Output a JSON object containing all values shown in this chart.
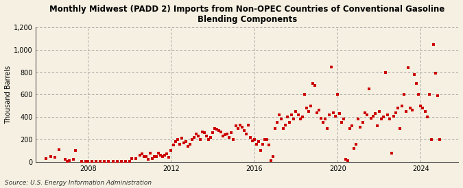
{
  "title": "Monthly Midwest (PADD 2) Imports from Non-OPEC Countries of Conventional Gasoline\nBlending Components",
  "ylabel": "Thousand Barrels",
  "source": "Source: U.S. Energy Information Administration",
  "background_color": "#f5f0e1",
  "plot_bg_color": "#f5f0e1",
  "dot_color": "#cc0000",
  "marker_size": 5,
  "ylim": [
    0,
    1200
  ],
  "yticks": [
    0,
    200,
    400,
    600,
    800,
    1000,
    1200
  ],
  "ytick_labels": [
    "0",
    "200",
    "400",
    "600",
    "800",
    "1,000",
    "1,200"
  ],
  "xticks": [
    2008,
    2012,
    2016,
    2020,
    2024
  ],
  "xlim": [
    2005.5,
    2025.8
  ],
  "data": [
    [
      2006.0,
      30
    ],
    [
      2006.2,
      50
    ],
    [
      2006.4,
      40
    ],
    [
      2006.6,
      110
    ],
    [
      2006.9,
      20
    ],
    [
      2007.0,
      5
    ],
    [
      2007.1,
      10
    ],
    [
      2007.3,
      20
    ],
    [
      2007.4,
      100
    ],
    [
      2007.7,
      5
    ],
    [
      2007.9,
      5
    ],
    [
      2008.0,
      5
    ],
    [
      2008.2,
      3
    ],
    [
      2008.4,
      5
    ],
    [
      2008.6,
      3
    ],
    [
      2008.8,
      5
    ],
    [
      2009.0,
      5
    ],
    [
      2009.2,
      3
    ],
    [
      2009.4,
      3
    ],
    [
      2009.6,
      3
    ],
    [
      2009.8,
      5
    ],
    [
      2010.0,
      5
    ],
    [
      2010.1,
      30
    ],
    [
      2010.3,
      30
    ],
    [
      2010.5,
      60
    ],
    [
      2010.6,
      70
    ],
    [
      2010.7,
      50
    ],
    [
      2010.8,
      50
    ],
    [
      2010.9,
      20
    ],
    [
      2011.0,
      80
    ],
    [
      2011.1,
      30
    ],
    [
      2011.2,
      50
    ],
    [
      2011.3,
      50
    ],
    [
      2011.4,
      80
    ],
    [
      2011.5,
      60
    ],
    [
      2011.6,
      50
    ],
    [
      2011.7,
      60
    ],
    [
      2011.8,
      70
    ],
    [
      2011.9,
      40
    ],
    [
      2012.0,
      100
    ],
    [
      2012.1,
      150
    ],
    [
      2012.2,
      180
    ],
    [
      2012.3,
      200
    ],
    [
      2012.4,
      160
    ],
    [
      2012.5,
      210
    ],
    [
      2012.6,
      170
    ],
    [
      2012.7,
      180
    ],
    [
      2012.8,
      140
    ],
    [
      2012.9,
      160
    ],
    [
      2013.0,
      200
    ],
    [
      2013.1,
      220
    ],
    [
      2013.2,
      250
    ],
    [
      2013.3,
      230
    ],
    [
      2013.4,
      200
    ],
    [
      2013.5,
      270
    ],
    [
      2013.6,
      260
    ],
    [
      2013.7,
      230
    ],
    [
      2013.8,
      200
    ],
    [
      2013.9,
      220
    ],
    [
      2014.0,
      260
    ],
    [
      2014.1,
      300
    ],
    [
      2014.2,
      290
    ],
    [
      2014.3,
      280
    ],
    [
      2014.4,
      270
    ],
    [
      2014.5,
      230
    ],
    [
      2014.6,
      240
    ],
    [
      2014.7,
      250
    ],
    [
      2014.8,
      220
    ],
    [
      2014.9,
      260
    ],
    [
      2015.0,
      200
    ],
    [
      2015.1,
      320
    ],
    [
      2015.2,
      300
    ],
    [
      2015.3,
      330
    ],
    [
      2015.4,
      310
    ],
    [
      2015.5,
      280
    ],
    [
      2015.6,
      250
    ],
    [
      2015.7,
      330
    ],
    [
      2015.8,
      220
    ],
    [
      2015.9,
      190
    ],
    [
      2016.0,
      200
    ],
    [
      2016.1,
      160
    ],
    [
      2016.2,
      180
    ],
    [
      2016.3,
      100
    ],
    [
      2016.4,
      160
    ],
    [
      2016.5,
      200
    ],
    [
      2016.6,
      200
    ],
    [
      2016.7,
      150
    ],
    [
      2016.8,
      10
    ],
    [
      2016.9,
      50
    ],
    [
      2017.0,
      300
    ],
    [
      2017.1,
      350
    ],
    [
      2017.2,
      420
    ],
    [
      2017.3,
      380
    ],
    [
      2017.4,
      300
    ],
    [
      2017.5,
      330
    ],
    [
      2017.6,
      400
    ],
    [
      2017.7,
      350
    ],
    [
      2017.8,
      420
    ],
    [
      2017.9,
      380
    ],
    [
      2018.0,
      450
    ],
    [
      2018.1,
      420
    ],
    [
      2018.2,
      380
    ],
    [
      2018.3,
      400
    ],
    [
      2018.4,
      600
    ],
    [
      2018.5,
      480
    ],
    [
      2018.6,
      450
    ],
    [
      2018.7,
      500
    ],
    [
      2018.8,
      700
    ],
    [
      2018.9,
      680
    ],
    [
      2019.0,
      440
    ],
    [
      2019.1,
      460
    ],
    [
      2019.2,
      390
    ],
    [
      2019.3,
      350
    ],
    [
      2019.4,
      380
    ],
    [
      2019.5,
      300
    ],
    [
      2019.6,
      420
    ],
    [
      2019.7,
      850
    ],
    [
      2019.8,
      440
    ],
    [
      2019.9,
      410
    ],
    [
      2020.0,
      600
    ],
    [
      2020.1,
      430
    ],
    [
      2020.2,
      350
    ],
    [
      2020.3,
      380
    ],
    [
      2020.4,
      20
    ],
    [
      2020.5,
      10
    ],
    [
      2020.6,
      300
    ],
    [
      2020.7,
      320
    ],
    [
      2020.8,
      120
    ],
    [
      2020.9,
      160
    ],
    [
      2021.0,
      380
    ],
    [
      2021.1,
      310
    ],
    [
      2021.2,
      350
    ],
    [
      2021.3,
      440
    ],
    [
      2021.4,
      420
    ],
    [
      2021.5,
      650
    ],
    [
      2021.6,
      390
    ],
    [
      2021.7,
      410
    ],
    [
      2021.8,
      430
    ],
    [
      2021.9,
      320
    ],
    [
      2022.0,
      450
    ],
    [
      2022.1,
      380
    ],
    [
      2022.2,
      400
    ],
    [
      2022.3,
      800
    ],
    [
      2022.4,
      420
    ],
    [
      2022.5,
      380
    ],
    [
      2022.6,
      80
    ],
    [
      2022.7,
      410
    ],
    [
      2022.8,
      440
    ],
    [
      2022.9,
      480
    ],
    [
      2023.0,
      300
    ],
    [
      2023.1,
      500
    ],
    [
      2023.2,
      600
    ],
    [
      2023.3,
      450
    ],
    [
      2023.4,
      840
    ],
    [
      2023.5,
      480
    ],
    [
      2023.6,
      460
    ],
    [
      2023.7,
      780
    ],
    [
      2023.8,
      700
    ],
    [
      2023.9,
      600
    ],
    [
      2024.0,
      500
    ],
    [
      2024.1,
      480
    ],
    [
      2024.2,
      450
    ],
    [
      2024.3,
      400
    ],
    [
      2024.4,
      600
    ],
    [
      2024.5,
      200
    ],
    [
      2024.6,
      1050
    ],
    [
      2024.7,
      790
    ],
    [
      2024.8,
      590
    ],
    [
      2024.9,
      200
    ]
  ]
}
